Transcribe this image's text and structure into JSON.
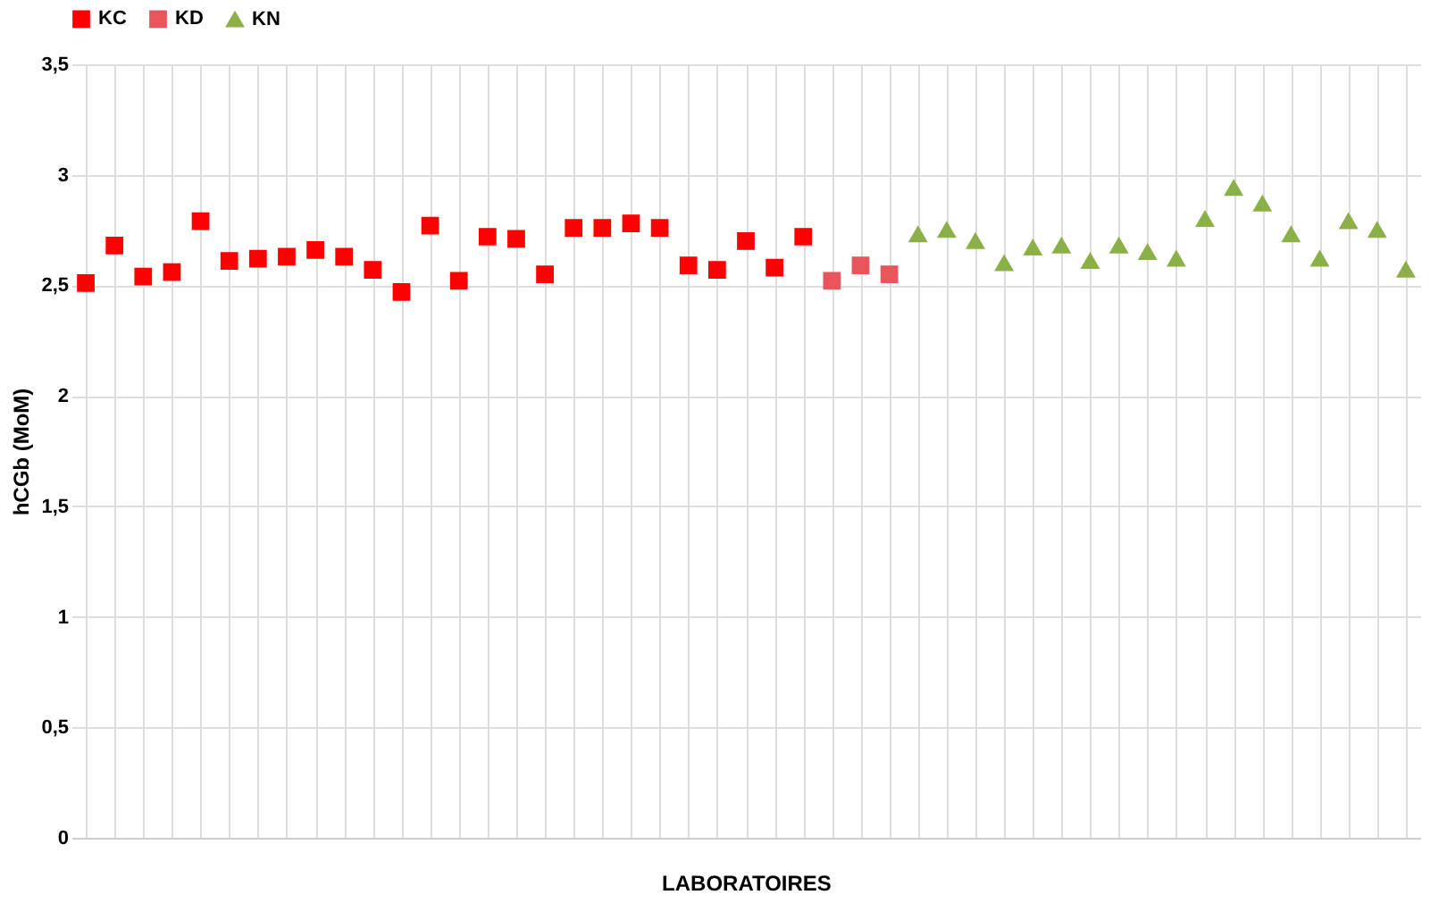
{
  "chart_data": {
    "type": "scatter",
    "xlabel": "LABORATOIRES",
    "ylabel": "hCGb (MoM)",
    "categories": [
      null,
      null,
      null,
      null,
      null,
      null,
      null,
      null,
      null,
      null,
      null,
      null,
      null,
      null,
      null,
      null,
      null,
      null,
      null,
      null,
      null,
      null,
      null,
      null,
      null,
      null,
      null,
      null,
      null,
      null,
      null,
      null,
      null,
      null,
      null,
      null,
      null,
      null,
      null,
      null,
      null,
      null,
      null,
      null,
      null,
      null,
      null
    ],
    "series": [
      {
        "name": "KC",
        "color": "#ff0000",
        "marker": "square",
        "values": [
          2.51,
          2.68,
          2.54,
          2.56,
          2.79,
          2.61,
          2.62,
          2.63,
          2.66,
          2.63,
          2.57,
          2.47,
          2.77,
          2.52,
          2.72,
          2.71,
          2.55,
          2.76,
          2.76,
          2.78,
          2.76,
          2.59,
          2.57,
          2.7,
          2.58,
          2.72,
          null,
          null,
          null,
          null,
          null,
          null,
          null,
          null,
          null,
          null,
          null,
          null,
          null,
          null,
          null,
          null,
          null,
          null,
          null,
          null,
          null
        ]
      },
      {
        "name": "KD",
        "color": "#e8555a",
        "marker": "square",
        "values": [
          null,
          null,
          null,
          null,
          null,
          null,
          null,
          null,
          null,
          null,
          null,
          null,
          null,
          null,
          null,
          null,
          null,
          null,
          null,
          null,
          null,
          null,
          null,
          null,
          null,
          null,
          2.52,
          2.59,
          2.55,
          null,
          null,
          null,
          null,
          null,
          null,
          null,
          null,
          null,
          null,
          null,
          null,
          null,
          null,
          null,
          null,
          null,
          null
        ]
      },
      {
        "name": "KN",
        "color": "#8cb048",
        "marker": "triangle",
        "values": [
          null,
          null,
          null,
          null,
          null,
          null,
          null,
          null,
          null,
          null,
          null,
          null,
          null,
          null,
          null,
          null,
          null,
          null,
          null,
          null,
          null,
          null,
          null,
          null,
          null,
          null,
          null,
          null,
          null,
          2.73,
          2.75,
          2.7,
          2.6,
          2.67,
          2.68,
          2.61,
          2.68,
          2.65,
          2.62,
          2.8,
          2.94,
          2.87,
          2.73,
          2.62,
          2.79,
          2.75,
          2.57
        ]
      }
    ],
    "ylim": [
      0,
      3.5
    ],
    "yticks": [
      0,
      {
        "value": 0.5,
        "label": "0,5"
      },
      1,
      {
        "value": 1.5,
        "label": "1,5"
      },
      2,
      {
        "value": 2.5,
        "label": "2,5"
      },
      3,
      {
        "value": 3.5,
        "label": "3,5"
      }
    ],
    "grid": true,
    "legend": "top",
    "tick_labels": "y"
  }
}
